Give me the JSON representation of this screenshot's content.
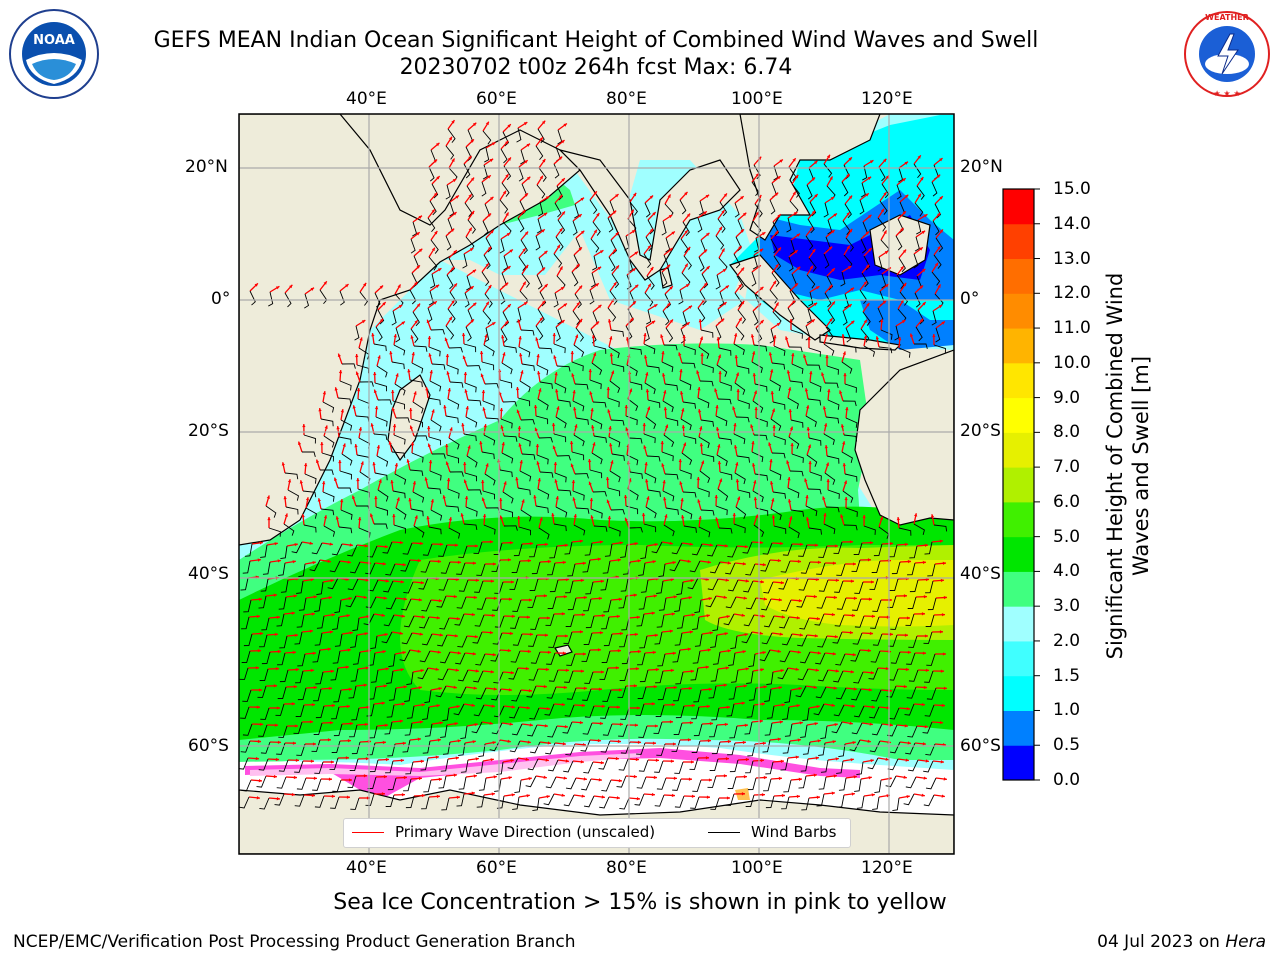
{
  "title": {
    "line1": "GEFS MEAN Indian Ocean Significant Height of Combined Wind Waves and Swell",
    "line2": "20230702 t00z 264h fcst   Max: 6.74"
  },
  "logos": {
    "left": "NOAA",
    "right": "NATIONAL WEATHER SERVICE"
  },
  "map": {
    "lon_ticks_top": [
      "40°E",
      "60°E",
      "80°E",
      "100°E",
      "120°E"
    ],
    "lon_ticks_bottom": [
      "40°E",
      "60°E",
      "80°E",
      "100°E",
      "120°E"
    ],
    "lat_ticks_left": [
      "20°N",
      "0°",
      "20°S",
      "40°S",
      "60°S"
    ],
    "lat_ticks_right": [
      "20°N",
      "0°",
      "20°S",
      "40°S",
      "60°S"
    ],
    "lon_values": [
      40,
      60,
      80,
      100,
      120
    ],
    "lat_values": [
      20,
      0,
      -20,
      -40,
      -60
    ],
    "lon_range": [
      20,
      130
    ],
    "lat_range": [
      -72,
      28
    ],
    "grid": true,
    "colors": {
      "land": "#EEECDA",
      "ice": "#FFFFFF",
      "arrows": "#FF0000",
      "barbs": "#000000"
    }
  },
  "colorbar": {
    "label": "Significant Height of Combined Wind Waves and Swell [m]",
    "ticks": [
      "0.0",
      "0.5",
      "1.0",
      "1.5",
      "2.0",
      "3.0",
      "4.0",
      "5.0",
      "6.0",
      "7.0",
      "8.0",
      "9.0",
      "10.0",
      "11.0",
      "12.0",
      "13.0",
      "14.0",
      "15.0"
    ],
    "colors": [
      "#0000FF",
      "#0080FF",
      "#00FFFF",
      "#40FFFF",
      "#A0FFFF",
      "#40FF80",
      "#00E600",
      "#40F000",
      "#B0F000",
      "#E6F000",
      "#FFFF00",
      "#FFE600",
      "#FFB400",
      "#FF8C00",
      "#FF6E00",
      "#FF4000",
      "#FF0000"
    ]
  },
  "legend": {
    "wave_direction": "Primary Wave Direction (unscaled)",
    "wind_barbs": "Wind Barbs"
  },
  "footer": {
    "note": "Sea Ice Concentration > 15% is shown in pink to yellow",
    "left": "NCEP/EMC/Verification Post Processing Product Generation Branch",
    "right_date": "04 Jul 2023 on ",
    "right_host": "Hera"
  }
}
